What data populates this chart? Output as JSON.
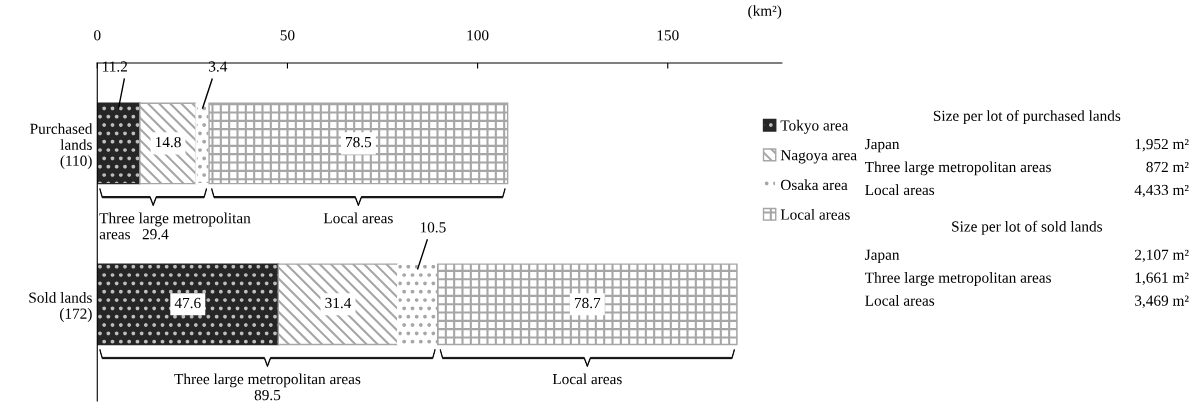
{
  "chart_data": [
    {
      "type": "bar",
      "orientation": "horizontal",
      "stacked": true,
      "categories": [
        "Purchased\nlands\n(110)",
        "Sold lands\n(172)"
      ],
      "series": [
        {
          "name": "Tokyo area",
          "color": "#262626",
          "values": [
            11.2,
            47.6
          ]
        },
        {
          "name": "Nagoya area",
          "color": "#a6a6a6",
          "values": [
            14.8,
            31.4
          ]
        },
        {
          "name": "Osaka area",
          "color": "#ffffff",
          "values": [
            3.4,
            10.5
          ]
        },
        {
          "name": "Local areas",
          "color": "#a6a6a6",
          "values": [
            78.5,
            78.7
          ]
        }
      ],
      "xlim": [
        0,
        180
      ],
      "xticks": [
        0,
        50,
        100,
        150
      ],
      "data_labels": true,
      "legend": "right",
      "grid": false,
      "annotations": [
        "(km²)",
        "Three large metropolitan\nareas   29.4",
        "Local areas",
        "Three large metropolitan areas\n89.5",
        "Local areas"
      ]
    },
    {
      "type": "other",
      "annotations": [
        "Size per lot of purchased lands",
        "Japan",
        "1,952 m²",
        "Three large metropolitan areas",
        "872 m²",
        "Local areas",
        "4,433 m²",
        "Size per lot of sold lands",
        "Japan",
        "2,107 m²",
        "Three large metropolitan areas",
        "1,661 m²",
        "Local areas",
        "3,469 m²"
      ]
    }
  ]
}
